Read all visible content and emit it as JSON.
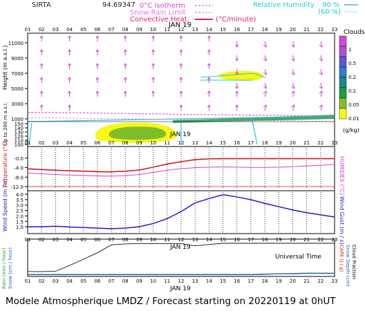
{
  "header": {
    "station": "SIRTA",
    "coords": "94.69347",
    "legend_isotherm": "0°C isotherm",
    "legend_snow": "Snow-Rain Limit",
    "legend_convective": "Convective Heat.",
    "legend_conv_unit": "(°C/minute)",
    "legend_rh": "Relative Humidity",
    "rh_90": "90 %",
    "rh_60": "(60 %)"
  },
  "hours": [
    "01",
    "02",
    "03",
    "04",
    "05",
    "06",
    "07",
    "08",
    "09",
    "10",
    "11",
    "12",
    "13",
    "14",
    "15",
    "16",
    "17",
    "18",
    "19",
    "20",
    "21",
    "22",
    "23"
  ],
  "date_label": "JAN 19",
  "universal_time": "Universal Time",
  "colorbar": {
    "title": "Clouds",
    "unit": "(g/kg)",
    "ticks": [
      "1",
      "0.5",
      "0.2",
      "0.1",
      "0.05",
      "0.01"
    ],
    "colors": [
      "#d24bd8",
      "#b34fd6",
      "#5a58d8",
      "#2f7ad8",
      "#178a8a",
      "#1f9c3c",
      "#7dbd2a",
      "#f7f718"
    ]
  },
  "footer": "Modele Atmospherique LMDZ / Forecast starting on 20220119 at 0hUT",
  "chart_data": [
    {
      "type": "heatmap",
      "title": "Clouds",
      "ylabel": "Height (m a.s.l.)",
      "ylabel2": "Up to 200 m a.s.l.",
      "yticks_upper": [
        1000,
        3000,
        5000,
        7000,
        9000,
        11000
      ],
      "yticks_lower": [
        100,
        110,
        120,
        130,
        140,
        150
      ],
      "zero_isotherm_m": [
        1850,
        1850,
        1830,
        1800,
        1780,
        1750,
        1720,
        1700,
        1680,
        1650,
        1630,
        1600,
        1580,
        1560,
        1540,
        1520,
        1500,
        1480,
        1460,
        1430,
        1400,
        1380,
        1350
      ],
      "cloud_layers": [
        {
          "name": "low cloud",
          "x_start": 6.0,
          "x_end": 10.0,
          "level": "near surface",
          "max_gkg": 0.05
        },
        {
          "name": "mid cloud",
          "x_start": 14.5,
          "x_end": 16.8,
          "height_m": 6300,
          "max_gkg": 0.01
        },
        {
          "name": "shallow layer",
          "x_start": 9.5,
          "x_end": 23,
          "height_m": 900,
          "max_gkg": 0.05
        }
      ]
    },
    {
      "type": "line",
      "ylabel": "Temperature (°C)",
      "ylabel2": "HUMIDEX (°C)",
      "yticks": [
        "-0.0",
        "-4.0",
        "-8.0",
        "-12.0"
      ],
      "ylim": [
        -12,
        2
      ],
      "x": [
        1,
        2,
        3,
        4,
        5,
        6,
        7,
        8,
        9,
        10,
        11,
        12,
        13,
        14,
        15,
        16,
        17,
        18,
        19,
        20,
        21,
        22,
        23
      ],
      "series": [
        {
          "name": "Temperature",
          "color": "#d81818",
          "values": [
            -4.5,
            -4.8,
            -5.1,
            -5.3,
            -5.5,
            -5.7,
            -5.8,
            -5.5,
            -5.0,
            -3.8,
            -2.5,
            -1.5,
            -0.6,
            -0.3,
            -0.2,
            -0.2,
            -0.2,
            -0.2,
            -0.2,
            -0.2,
            -0.2,
            -0.2,
            -0.2
          ]
        },
        {
          "name": "Humidex",
          "color": "#cc44cc",
          "values": [
            -6.3,
            -6.6,
            -6.9,
            -7.1,
            -7.3,
            -7.5,
            -7.6,
            -7.4,
            -6.9,
            -6.0,
            -5.1,
            -4.4,
            -4.0,
            -3.8,
            -3.7,
            -3.8,
            -3.9,
            -3.9,
            -3.8,
            -3.6,
            -3.3,
            -3.0,
            -2.6
          ]
        }
      ]
    },
    {
      "type": "line",
      "ylabel": "Wind Speed (m / s)",
      "ylabel2": "Wind Gust (m / s)",
      "yticks": [
        "1.0",
        "1.5",
        "2.0",
        "2.5",
        "3.0",
        "3.5",
        "4.0"
      ],
      "ylim": [
        0.5,
        4.1
      ],
      "x": [
        1,
        2,
        3,
        4,
        5,
        6,
        7,
        8,
        9,
        10,
        11,
        12,
        13,
        14,
        15,
        16,
        17,
        18,
        19,
        20,
        21,
        22,
        23
      ],
      "series": [
        {
          "name": "Wind Speed",
          "color": "#1c1cc8",
          "values": [
            1.0,
            1.0,
            1.05,
            0.98,
            0.93,
            0.88,
            0.82,
            0.88,
            1.0,
            1.3,
            1.75,
            2.4,
            3.2,
            3.6,
            3.95,
            3.75,
            3.5,
            3.15,
            2.85,
            2.55,
            2.3,
            2.1,
            1.9
          ]
        }
      ]
    },
    {
      "type": "line",
      "ylabel": "Rain (mm / hour)",
      "ylabel_snow": "Snow (cm / hour)",
      "ylabel_right": "CAPE (J / g)",
      "ylabel_right2": "Snow Depth (cm)",
      "ylabel_right3": "Cloud Fraction",
      "x": [
        1,
        2,
        3,
        4,
        5,
        6,
        7,
        8,
        9,
        10,
        11,
        12,
        13,
        14,
        15,
        16,
        17,
        18,
        19,
        20,
        21,
        22,
        23
      ],
      "series": [
        {
          "name": "Cloud Fraction",
          "color": "#111111",
          "values": [
            0.11,
            0.11,
            0.12,
            0.3,
            0.5,
            0.7,
            0.95,
            0.98,
            0.99,
            0.99,
            0.99,
            0.99,
            0.92,
            0.96,
            1.0,
            1.0,
            1.0,
            1.0,
            1.0,
            1.0,
            1.0,
            1.0,
            1.0
          ]
        },
        {
          "name": "Rain",
          "color": "#2b9a2b",
          "values": [
            0.01,
            0.01,
            0.01,
            0.01,
            0.01,
            0.01,
            0.01,
            0.01,
            0.01,
            0.01,
            0.01,
            0.01,
            0.01,
            0.01,
            0.01,
            0.01,
            0.01,
            0.02,
            0.04,
            0.05,
            0.06,
            0.06,
            0.06
          ]
        },
        {
          "name": "Snow",
          "color": "#2b5acc",
          "values": [
            0.02,
            0.02,
            0.02,
            0.02,
            0.02,
            0.02,
            0.02,
            0.02,
            0.02,
            0.02,
            0.02,
            0.02,
            0.02,
            0.02,
            0.02,
            0.02,
            0.02,
            0.03,
            0.04,
            0.04,
            0.05,
            0.05,
            0.05
          ]
        }
      ]
    }
  ]
}
